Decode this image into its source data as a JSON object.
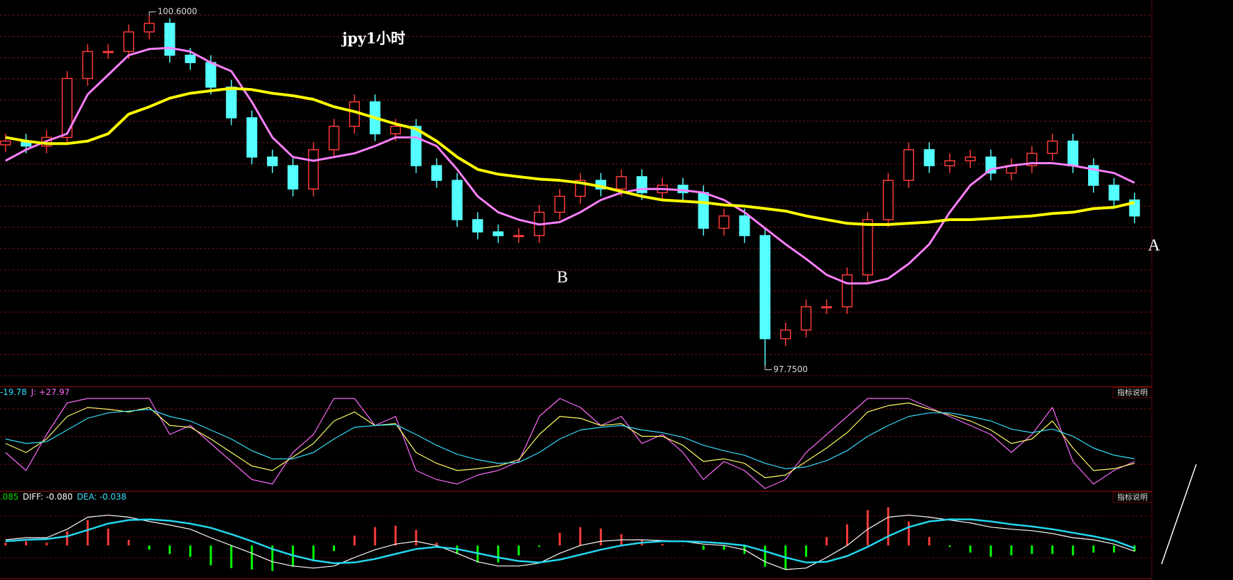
{
  "chart_data": {
    "type": "candlestick",
    "title": "jpy1小时",
    "ylim": [
      97.59,
      100.73
    ],
    "up_color": "#ff3b3b",
    "down_color": "#54ffff",
    "open": [
      99.55,
      99.58,
      99.54,
      99.61,
      100.09,
      100.31,
      100.31,
      100.47,
      100.54,
      100.28,
      100.22,
      100.02,
      99.77,
      99.45,
      99.38,
      99.19,
      99.51,
      99.7,
      99.9,
      99.64,
      99.7,
      99.38,
      99.26,
      98.94,
      98.84,
      98.81,
      98.81,
      99.0,
      99.13,
      99.26,
      99.19,
      99.29,
      99.16,
      99.22,
      99.16,
      98.87,
      98.97,
      98.81,
      97.97,
      98.04,
      98.23,
      98.23,
      98.49,
      98.94,
      99.26,
      99.51,
      99.38,
      99.42,
      99.45,
      99.32,
      99.38,
      99.48,
      99.58,
      99.38,
      99.22,
      99.1
    ],
    "high": [
      99.64,
      99.64,
      99.67,
      100.15,
      100.37,
      100.37,
      100.53,
      100.6,
      100.58,
      100.34,
      100.28,
      100.08,
      99.83,
      99.51,
      99.44,
      99.57,
      99.76,
      99.96,
      99.96,
      99.76,
      99.76,
      99.44,
      99.32,
      99.0,
      98.9,
      98.87,
      99.06,
      99.19,
      99.32,
      99.32,
      99.35,
      99.35,
      99.28,
      99.28,
      99.22,
      99.03,
      99.03,
      98.87,
      98.1,
      98.29,
      98.29,
      98.55,
      99.0,
      99.32,
      99.57,
      99.57,
      99.48,
      99.51,
      99.51,
      99.44,
      99.54,
      99.64,
      99.64,
      99.44,
      99.28,
      99.16
    ],
    "low": [
      99.49,
      99.48,
      99.48,
      99.55,
      100.03,
      100.25,
      100.25,
      100.41,
      100.22,
      100.16,
      99.96,
      99.71,
      99.39,
      99.32,
      99.13,
      99.13,
      99.45,
      99.64,
      99.58,
      99.58,
      99.32,
      99.2,
      98.88,
      98.78,
      98.75,
      98.75,
      98.75,
      98.94,
      99.07,
      99.13,
      99.13,
      99.1,
      99.1,
      99.1,
      98.81,
      98.81,
      98.75,
      97.75,
      97.91,
      97.98,
      98.17,
      98.17,
      98.43,
      98.88,
      99.2,
      99.32,
      99.32,
      99.36,
      99.26,
      99.26,
      99.32,
      99.42,
      99.32,
      99.16,
      99.04,
      98.91
    ],
    "close": [
      99.58,
      99.54,
      99.61,
      100.09,
      100.31,
      100.31,
      100.47,
      100.54,
      100.28,
      100.22,
      100.02,
      99.77,
      99.45,
      99.38,
      99.19,
      99.51,
      99.7,
      99.9,
      99.64,
      99.7,
      99.38,
      99.26,
      98.94,
      98.84,
      98.81,
      98.81,
      99.0,
      99.13,
      99.26,
      99.19,
      99.29,
      99.16,
      99.22,
      99.16,
      98.87,
      98.97,
      98.81,
      97.97,
      98.04,
      98.23,
      98.23,
      98.49,
      98.94,
      99.26,
      99.51,
      99.38,
      99.42,
      99.45,
      99.32,
      99.38,
      99.48,
      99.58,
      99.38,
      99.22,
      99.1,
      98.97
    ],
    "lines": [
      {
        "color": "#ff80ff",
        "width": 3,
        "values": [
          99.42,
          99.51,
          99.58,
          99.64,
          99.96,
          100.12,
          100.28,
          100.33,
          100.34,
          100.31,
          100.22,
          100.15,
          99.9,
          99.61,
          99.45,
          99.42,
          99.45,
          99.48,
          99.54,
          99.61,
          99.61,
          99.54,
          99.35,
          99.13,
          99.0,
          98.94,
          98.9,
          98.92,
          99.0,
          99.1,
          99.16,
          99.19,
          99.19,
          99.18,
          99.16,
          99.1,
          99.0,
          98.87,
          98.74,
          98.62,
          98.49,
          98.42,
          98.42,
          98.46,
          98.58,
          98.74,
          99.0,
          99.22,
          99.35,
          99.38,
          99.4,
          99.4,
          99.38,
          99.35,
          99.32,
          99.24
        ]
      },
      {
        "color": "#ffff00",
        "width": 4,
        "values": [
          99.61,
          99.58,
          99.56,
          99.56,
          99.58,
          99.64,
          99.8,
          99.86,
          99.93,
          99.97,
          99.99,
          100.01,
          100.0,
          99.97,
          99.95,
          99.92,
          99.86,
          99.82,
          99.77,
          99.72,
          99.68,
          99.58,
          99.45,
          99.35,
          99.31,
          99.29,
          99.27,
          99.26,
          99.24,
          99.21,
          99.17,
          99.13,
          99.1,
          99.09,
          99.08,
          99.06,
          99.05,
          99.03,
          99.01,
          98.97,
          98.94,
          98.91,
          98.9,
          98.9,
          98.91,
          98.92,
          98.94,
          98.94,
          98.95,
          98.96,
          98.97,
          98.99,
          99.0,
          99.03,
          99.04,
          99.08
        ]
      }
    ],
    "annotations": [
      {
        "value": 100.6,
        "label": "100.6000"
      },
      {
        "value": 97.75,
        "label": "97.7500"
      }
    ],
    "labels": [
      "A",
      "B"
    ],
    "buttons": [
      "指标说明",
      "指标说明"
    ],
    "kdj": {
      "header": [
        "-19.78",
        "J: +27.97"
      ],
      "ylim": [
        0,
        100
      ],
      "series": [
        {
          "color": "#ff6bff",
          "values": [
            40,
            20,
            60,
            95,
            100,
            100,
            100,
            100,
            60,
            70,
            50,
            30,
            10,
            5,
            40,
            60,
            100,
            100,
            70,
            80,
            20,
            10,
            5,
            15,
            20,
            30,
            80,
            100,
            90,
            70,
            80,
            50,
            60,
            40,
            10,
            30,
            20,
            0,
            10,
            40,
            60,
            80,
            100,
            100,
            100,
            90,
            80,
            70,
            60,
            40,
            60,
            90,
            30,
            5,
            20,
            30
          ]
        },
        {
          "color": "#ffff66",
          "values": [
            50,
            40,
            55,
            80,
            90,
            88,
            85,
            90,
            70,
            68,
            55,
            40,
            25,
            20,
            35,
            50,
            75,
            85,
            70,
            72,
            40,
            28,
            20,
            22,
            25,
            32,
            60,
            80,
            78,
            70,
            72,
            58,
            58,
            48,
            30,
            33,
            28,
            12,
            15,
            30,
            45,
            62,
            85,
            92,
            95,
            88,
            82,
            75,
            65,
            50,
            55,
            75,
            45,
            20,
            22,
            28
          ]
        },
        {
          "color": "#33e0ff",
          "values": [
            55,
            50,
            52,
            65,
            78,
            84,
            86,
            88,
            80,
            75,
            65,
            55,
            42,
            33,
            33,
            40,
            55,
            68,
            70,
            71,
            60,
            48,
            38,
            32,
            28,
            29,
            40,
            55,
            65,
            68,
            70,
            65,
            62,
            57,
            48,
            42,
            37,
            28,
            22,
            24,
            31,
            42,
            58,
            70,
            80,
            84,
            84,
            80,
            75,
            66,
            62,
            66,
            58,
            45,
            37,
            33
          ]
        }
      ]
    },
    "macd": {
      "header": [
        ".085",
        "DIFF: -0.080",
        "DEA: -0.038"
      ],
      "ylim": [
        -0.4,
        0.6
      ],
      "pos_color": "#ff3b3b",
      "neg_color": "#00ff00",
      "hist": [
        0.04,
        0.06,
        0.04,
        0.2,
        0.36,
        0.24,
        0.08,
        -0.06,
        -0.12,
        -0.16,
        -0.28,
        -0.32,
        -0.34,
        -0.36,
        -0.3,
        -0.22,
        -0.08,
        0.14,
        0.26,
        0.28,
        0.22,
        0.04,
        -0.12,
        -0.24,
        -0.24,
        -0.14,
        -0.02,
        0.18,
        0.26,
        0.24,
        0.16,
        0.08,
        0.02,
        0,
        -0.06,
        -0.06,
        -0.12,
        -0.3,
        -0.34,
        -0.16,
        0.12,
        0.3,
        0.5,
        0.54,
        0.34,
        0.12,
        -0.02,
        -0.1,
        -0.16,
        -0.14,
        -0.12,
        -0.12,
        -0.14,
        -0.1,
        -0.1,
        -0.085
      ],
      "series": [
        {
          "color": "#ffffff",
          "values": [
            0.08,
            0.11,
            0.11,
            0.23,
            0.4,
            0.43,
            0.4,
            0.34,
            0.29,
            0.23,
            0.11,
            0,
            -0.11,
            -0.23,
            -0.29,
            -0.32,
            -0.29,
            -0.17,
            -0.06,
            0.02,
            0.06,
            0,
            -0.11,
            -0.23,
            -0.29,
            -0.29,
            -0.25,
            -0.11,
            0,
            0.06,
            0.08,
            0.08,
            0.07,
            0.06,
            0.02,
            0,
            -0.06,
            -0.23,
            -0.34,
            -0.32,
            -0.17,
            0,
            0.23,
            0.4,
            0.43,
            0.4,
            0.36,
            0.32,
            0.26,
            0.23,
            0.21,
            0.17,
            0.11,
            0.08,
            0.02,
            -0.08
          ]
        },
        {
          "color": "#22d8f0",
          "values": [
            0.06,
            0.08,
            0.09,
            0.13,
            0.22,
            0.31,
            0.36,
            0.37,
            0.35,
            0.31,
            0.25,
            0.16,
            0.06,
            -0.05,
            -0.14,
            -0.21,
            -0.25,
            -0.24,
            -0.19,
            -0.12,
            -0.05,
            -0.02,
            -0.05,
            -0.11,
            -0.17,
            -0.22,
            -0.24,
            -0.2,
            -0.13,
            -0.06,
            0,
            0.04,
            0.06,
            0.06,
            0.05,
            0.03,
            0,
            -0.08,
            -0.17,
            -0.24,
            -0.23,
            -0.15,
            -0.02,
            0.13,
            0.26,
            0.34,
            0.37,
            0.37,
            0.34,
            0.3,
            0.27,
            0.23,
            0.18,
            0.13,
            0.07,
            -0.038
          ]
        }
      ]
    }
  }
}
